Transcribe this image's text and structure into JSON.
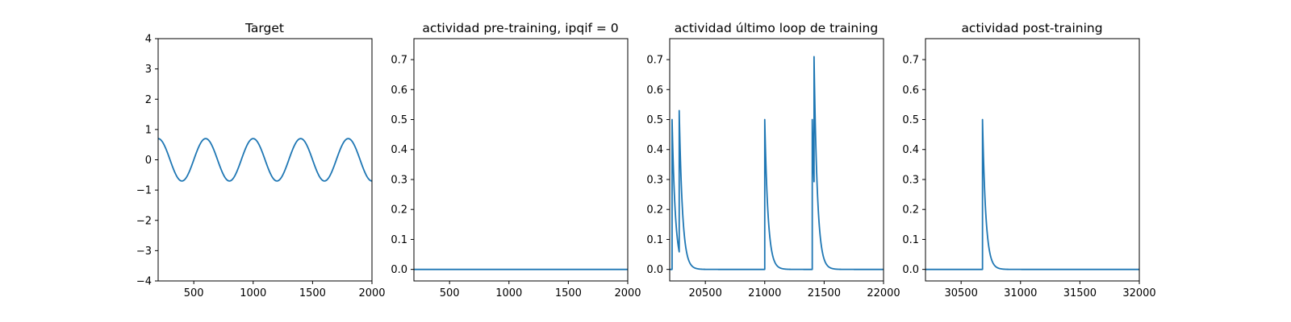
{
  "chart_data": [
    {
      "type": "line",
      "title": "Target",
      "xlabel": "",
      "ylabel": "",
      "xlim": [
        200,
        2000
      ],
      "ylim": [
        -4,
        4
      ],
      "xticks": [
        500,
        1000,
        1500,
        2000
      ],
      "yticks": [
        -4,
        -3,
        -2,
        -1,
        0,
        1,
        2,
        3,
        4
      ],
      "grid": false,
      "series": [
        {
          "color": "#1f77b4",
          "kind": "sine",
          "amplitude": 0.7,
          "period": 400,
          "peak_x": 600,
          "x_start": 200,
          "x_end": 2000
        }
      ]
    },
    {
      "type": "line",
      "title": "actividad pre-training, ipqif = 0",
      "xlabel": "",
      "ylabel": "",
      "xlim": [
        200,
        2000
      ],
      "ylim": [
        -0.0385,
        0.77
      ],
      "xticks": [
        500,
        1000,
        1500,
        2000
      ],
      "yticks": [
        0.0,
        0.1,
        0.2,
        0.3,
        0.4,
        0.5,
        0.6,
        0.7
      ],
      "grid": false,
      "series": [
        {
          "color": "#1f77b4",
          "kind": "flat",
          "value": 0.0,
          "x_start": 200,
          "x_end": 2000
        }
      ]
    },
    {
      "type": "line",
      "title": "actividad último loop de training",
      "xlabel": "",
      "ylabel": "",
      "xlim": [
        20200,
        22000
      ],
      "ylim": [
        -0.0385,
        0.77
      ],
      "xticks": [
        20500,
        21000,
        21500,
        22000
      ],
      "yticks": [
        0.0,
        0.1,
        0.2,
        0.3,
        0.4,
        0.5,
        0.6,
        0.7
      ],
      "grid": false,
      "series": [
        {
          "color": "#1f77b4",
          "kind": "spikes",
          "baseline": 0.0,
          "tau": 28,
          "x_start": 20200,
          "x_end": 22000,
          "spikes": [
            {
              "x": 20220,
              "peak": 0.5
            },
            {
              "x": 20280,
              "peak": 0.53
            },
            {
              "x": 21000,
              "peak": 0.5
            },
            {
              "x": 21400,
              "peak": 0.5
            },
            {
              "x": 21415,
              "peak": 0.71
            }
          ]
        }
      ]
    },
    {
      "type": "line",
      "title": "actividad post-training",
      "xlabel": "",
      "ylabel": "",
      "xlim": [
        30200,
        32000
      ],
      "ylim": [
        -0.0385,
        0.77
      ],
      "xticks": [
        30500,
        31000,
        31500,
        32000
      ],
      "yticks": [
        0.0,
        0.1,
        0.2,
        0.3,
        0.4,
        0.5,
        0.6,
        0.7
      ],
      "grid": false,
      "series": [
        {
          "color": "#1f77b4",
          "kind": "spikes",
          "baseline": 0.0,
          "tau": 28,
          "x_start": 30200,
          "x_end": 32000,
          "spikes": [
            {
              "x": 30680,
              "peak": 0.5
            }
          ]
        }
      ]
    }
  ]
}
